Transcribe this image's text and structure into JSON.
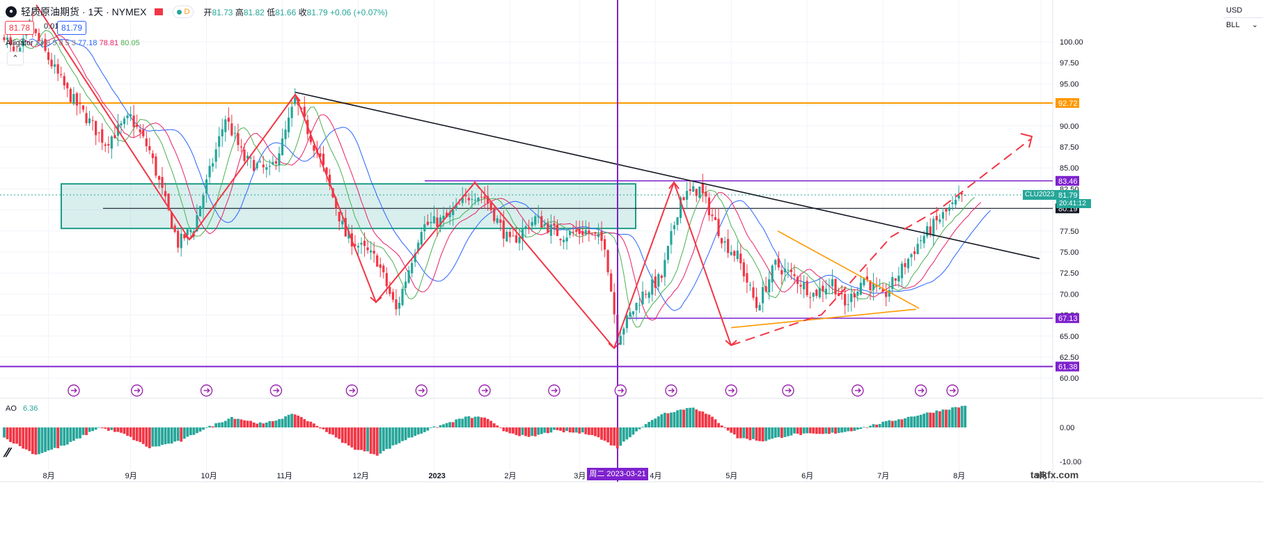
{
  "header": {
    "symbol_title": "轻质原油期货 · 1天 · NYMEX",
    "status_badge": "D",
    "ohlc": {
      "open_label": "开",
      "open": "81.73",
      "high_label": "高",
      "high": "81.82",
      "low_label": "低",
      "low": "81.66",
      "close_label": "收",
      "close": "81.79",
      "change": "+0.06 (+0.07%)"
    },
    "bid": "81.78",
    "spread": "0.01",
    "ask": "81.79"
  },
  "indicators": {
    "alligator": {
      "name": "Alligator",
      "params": "13 8 5 8 5 3",
      "jaw": "77.18",
      "teeth": "78.81",
      "lips": "80.05"
    },
    "ao": {
      "name": "AO",
      "value": "6.36"
    }
  },
  "toolbar": {
    "currency": "USD",
    "unit": "BLL"
  },
  "crosshair_date": "周二 2023-03-21",
  "contract_label": "CLU2023",
  "countdown": "20:41:12",
  "watermark": "talkfx.com",
  "colors": {
    "up": "#26a69a",
    "down": "#f23645",
    "orange": "#ff9800",
    "purple": "#7e22ce",
    "pattern": "#f23645",
    "jaw": "#2962ff",
    "teeth": "#e91e63",
    "lips": "#4caf50"
  },
  "chart_data": {
    "type": "candlestick",
    "y_ticks": [
      100.0,
      97.5,
      95.0,
      92.5,
      90.0,
      87.5,
      85.0,
      82.5,
      80.0,
      77.5,
      75.0,
      72.5,
      70.0,
      67.5,
      65.0,
      62.5,
      60.0
    ],
    "ao_ticks": [
      0.0,
      -10.0
    ],
    "x_ticks": [
      "8月",
      "9月",
      "10月",
      "11月",
      "12月",
      "2023",
      "2月",
      "3月",
      "4月",
      "5月",
      "6月",
      "7月",
      "8月",
      "9月"
    ],
    "price_labels": [
      {
        "value": "92.72",
        "price": 92.72,
        "color": "#ff9800"
      },
      {
        "value": "83.46",
        "price": 83.46,
        "color": "#7e22ce"
      },
      {
        "value": "81.79",
        "price": 81.79,
        "color": "#26a69a"
      },
      {
        "value": "80.19",
        "price": 80.19,
        "color": "#131722"
      },
      {
        "value": "67.13",
        "price": 67.13,
        "color": "#7e22ce"
      },
      {
        "value": "61.38",
        "price": 61.38,
        "color": "#7e22ce"
      }
    ],
    "anchors": [
      [
        0,
        101.0
      ],
      [
        4,
        97.5
      ],
      [
        8,
        102.0
      ],
      [
        20,
        94.0
      ],
      [
        32,
        88.0
      ],
      [
        40,
        91.0
      ],
      [
        46,
        87.0
      ],
      [
        55,
        76.0
      ],
      [
        60,
        78.0
      ],
      [
        70,
        91.0
      ],
      [
        76,
        86.0
      ],
      [
        84,
        84.5
      ],
      [
        88,
        88.0
      ],
      [
        92,
        93.0
      ],
      [
        100,
        86.0
      ],
      [
        108,
        77.0
      ],
      [
        118,
        74.0
      ],
      [
        124,
        68.0
      ],
      [
        132,
        78.0
      ],
      [
        140,
        79.0
      ],
      [
        148,
        82.0
      ],
      [
        152,
        81.5
      ],
      [
        160,
        76.0
      ],
      [
        168,
        79.0
      ],
      [
        176,
        77.0
      ],
      [
        184,
        77.5
      ],
      [
        190,
        76.0
      ],
      [
        194,
        65.0
      ],
      [
        202,
        70.0
      ],
      [
        208,
        72.0
      ],
      [
        214,
        81.5
      ],
      [
        220,
        82.5
      ],
      [
        228,
        76.0
      ],
      [
        232,
        74.5
      ],
      [
        238,
        68.5
      ],
      [
        244,
        73.5
      ],
      [
        250,
        72.0
      ],
      [
        256,
        70.0
      ],
      [
        262,
        71.5
      ],
      [
        266,
        68.5
      ],
      [
        272,
        72.0
      ],
      [
        278,
        69.5
      ],
      [
        284,
        73.0
      ],
      [
        290,
        76.5
      ],
      [
        296,
        79.0
      ],
      [
        304,
        81.79
      ]
    ],
    "first_date_offset_note": "",
    "ao_anchors": [
      [
        0,
        -3
      ],
      [
        10,
        -8
      ],
      [
        20,
        -5
      ],
      [
        30,
        0
      ],
      [
        38,
        -2
      ],
      [
        46,
        -6
      ],
      [
        56,
        -4
      ],
      [
        62,
        -1
      ],
      [
        72,
        3
      ],
      [
        82,
        1
      ],
      [
        92,
        4
      ],
      [
        100,
        0
      ],
      [
        110,
        -6
      ],
      [
        118,
        -8
      ],
      [
        126,
        -4
      ],
      [
        136,
        0
      ],
      [
        146,
        3
      ],
      [
        152,
        3
      ],
      [
        158,
        -1
      ],
      [
        166,
        -3
      ],
      [
        174,
        -1
      ],
      [
        186,
        -2
      ],
      [
        194,
        -6
      ],
      [
        200,
        -1
      ],
      [
        208,
        4
      ],
      [
        218,
        6
      ],
      [
        224,
        3
      ],
      [
        232,
        -3
      ],
      [
        240,
        -4
      ],
      [
        250,
        -2
      ],
      [
        260,
        -2
      ],
      [
        268,
        -1
      ],
      [
        276,
        1
      ],
      [
        286,
        3
      ],
      [
        296,
        5
      ],
      [
        304,
        6.36
      ]
    ],
    "event_markers": [
      22,
      42,
      64,
      86,
      110,
      132,
      152,
      174,
      195,
      211,
      230,
      248,
      270,
      290,
      300
    ]
  }
}
